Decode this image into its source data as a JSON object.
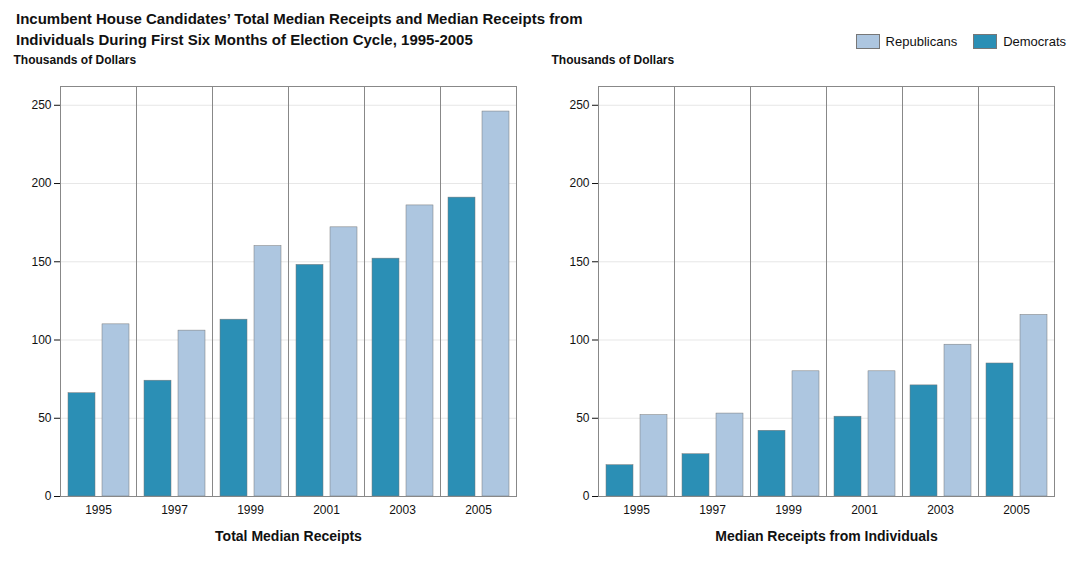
{
  "title": "Incumbent House Candidates’ Total Median Receipts and Median Receipts from\nIndividuals During First Six Months of Election Cycle, 1995-2005",
  "chart_data": [
    {
      "type": "bar",
      "xlabel": "Total Median Receipts",
      "ylabel": "Thousands of Dollars",
      "categories": [
        "1995",
        "1997",
        "1999",
        "2001",
        "2003",
        "2005"
      ],
      "series": [
        {
          "name": "Democrats",
          "color": "#2b8fb5",
          "values": [
            66,
            74,
            113,
            148,
            152,
            191
          ]
        },
        {
          "name": "Republicans",
          "color": "#adc6e0",
          "values": [
            110,
            106,
            160,
            172,
            186,
            246
          ]
        }
      ],
      "ylim": [
        0,
        262
      ],
      "yticks": [
        0,
        50,
        100,
        150,
        200,
        250
      ],
      "grid": true
    },
    {
      "type": "bar",
      "xlabel": "Median Receipts from Individuals",
      "ylabel": "Thousands of Dollars",
      "categories": [
        "1995",
        "1997",
        "1999",
        "2001",
        "2003",
        "2005"
      ],
      "series": [
        {
          "name": "Democrats",
          "color": "#2b8fb5",
          "values": [
            20,
            27,
            42,
            51,
            71,
            85
          ]
        },
        {
          "name": "Republicans",
          "color": "#adc6e0",
          "values": [
            52,
            53,
            80,
            80,
            97,
            116
          ]
        }
      ],
      "ylim": [
        0,
        262
      ],
      "yticks": [
        0,
        50,
        100,
        150,
        200,
        250
      ],
      "grid": true,
      "legend": "upper right"
    }
  ]
}
